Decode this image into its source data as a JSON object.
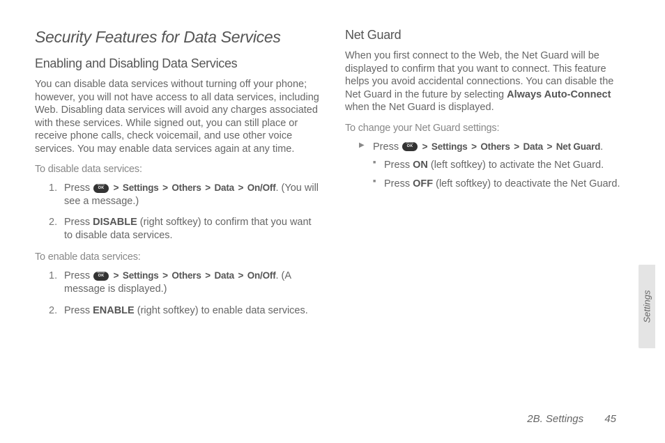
{
  "left": {
    "h1": "Security Features for Data Services",
    "h2": "Enabling and Disabling Data Services",
    "intro": "You can disable data services without turning off your phone; however, you will not have access to all data services, including Web. Disabling data services will avoid any charges associated with these services. While signed out, you can still place or receive phone calls, check voicemail, and use other voice services. You may enable data services again at any time.",
    "lead1": "To disable data services:",
    "disable1_pre": "Press ",
    "disable1_nav": " > Settings > Others > Data > On/Off",
    "disable1_post": ". (You will see a message.)",
    "disable2_pre": "Press ",
    "disable2_b": "DISABLE",
    "disable2_post": " (right softkey) to confirm that you want to disable data services.",
    "lead2": "To enable data services:",
    "enable1_pre": "Press ",
    "enable1_nav": " > Settings > Others > Data > On/Off",
    "enable1_post": ". (A message is displayed.)",
    "enable2_pre": "Press ",
    "enable2_b": "ENABLE",
    "enable2_post": " (right softkey) to enable data services."
  },
  "right": {
    "h3": "Net Guard",
    "intro_pre": "When you first connect to the Web, the Net Guard will be displayed to confirm that you want to connect. This feature helps you avoid accidental connections. You can disable the Net Guard in the future by selecting ",
    "intro_b": "Always Auto-Connect",
    "intro_post": " when the Net Guard is displayed.",
    "lead": "To change your Net Guard settings:",
    "arrow_pre": "Press ",
    "arrow_nav": " > Settings > Others > Data > Net Guard",
    "arrow_post": ".",
    "sub1_pre": "Press ",
    "sub1_b": "ON",
    "sub1_post": " (left softkey) to activate the Net Guard.",
    "sub2_pre": "Press ",
    "sub2_b": "OFF",
    "sub2_post": " (left softkey) to deactivate the Net Guard."
  },
  "sideTab": "Settings",
  "footerSection": "2B. Settings",
  "footerPage": "45"
}
